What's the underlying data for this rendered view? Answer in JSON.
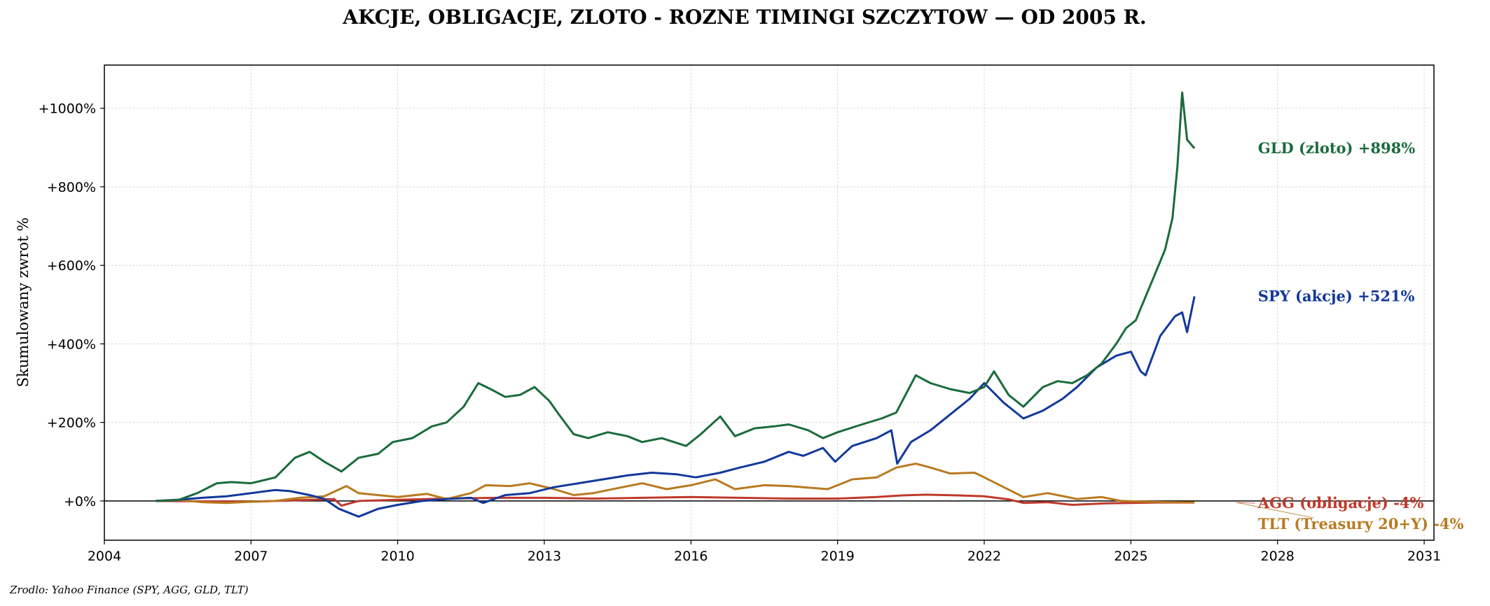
{
  "chart_data": {
    "type": "line",
    "title": "AKCJE, OBLIGACJE, ZLOTO - ROZNE TIMINGI SZCZYTOW — OD 2005 R.",
    "ylabel": "Skumulowany zwrot %",
    "xlabel": "",
    "source": "Zrodlo: Yahoo Finance (SPY, AGG, GLD, TLT)",
    "xlim": [
      2004.0,
      2031.2
    ],
    "ylim": [
      -100,
      1110
    ],
    "x_ticks": [
      2004,
      2007,
      2010,
      2013,
      2016,
      2019,
      2022,
      2025,
      2028,
      2031
    ],
    "x_tick_labels": [
      "2004",
      "2007",
      "2010",
      "2013",
      "2016",
      "2019",
      "2022",
      "2025",
      "2028",
      "2031"
    ],
    "y_ticks": [
      0,
      200,
      400,
      600,
      800,
      1000
    ],
    "y_tick_labels": [
      "+0%",
      "+200%",
      "+400%",
      "+600%",
      "+800%",
      "+1000%"
    ],
    "grid": true,
    "zero_line": true,
    "series": [
      {
        "name": "GLD (zloto)",
        "end_label": "GLD (zloto)  +898%",
        "color": "#1a6b3c",
        "x": [
          2005.05,
          2005.5,
          2005.9,
          2006.3,
          2006.6,
          2007.0,
          2007.5,
          2007.9,
          2008.2,
          2008.5,
          2008.85,
          2009.2,
          2009.6,
          2009.9,
          2010.3,
          2010.7,
          2011.0,
          2011.35,
          2011.65,
          2011.9,
          2012.2,
          2012.5,
          2012.8,
          2013.1,
          2013.3,
          2013.6,
          2013.9,
          2014.3,
          2014.7,
          2015.0,
          2015.4,
          2015.9,
          2016.2,
          2016.6,
          2016.9,
          2017.3,
          2017.7,
          2018.0,
          2018.4,
          2018.7,
          2019.0,
          2019.5,
          2019.9,
          2020.2,
          2020.6,
          2020.9,
          2021.3,
          2021.7,
          2022.0,
          2022.2,
          2022.5,
          2022.8,
          2023.2,
          2023.5,
          2023.8,
          2024.1,
          2024.4,
          2024.7,
          2024.9,
          2025.1,
          2025.3,
          2025.5,
          2025.7,
          2025.85,
          2025.95,
          2026.05,
          2026.15,
          2026.3
        ],
        "values": [
          0,
          2,
          20,
          45,
          48,
          45,
          60,
          110,
          125,
          100,
          75,
          110,
          120,
          150,
          160,
          190,
          200,
          240,
          300,
          285,
          265,
          270,
          290,
          255,
          220,
          170,
          160,
          175,
          165,
          150,
          160,
          140,
          170,
          215,
          165,
          185,
          190,
          195,
          180,
          160,
          175,
          195,
          210,
          225,
          320,
          300,
          285,
          275,
          290,
          330,
          270,
          240,
          290,
          305,
          300,
          320,
          350,
          400,
          440,
          460,
          520,
          580,
          640,
          720,
          850,
          1040,
          920,
          898
        ]
      },
      {
        "name": "SPY (akcje)",
        "end_label": "SPY (akcje)  +521%",
        "color": "#13389b",
        "x": [
          2005.05,
          2005.5,
          2006.0,
          2006.5,
          2007.0,
          2007.5,
          2007.8,
          2008.2,
          2008.5,
          2008.8,
          2009.0,
          2009.2,
          2009.6,
          2010.0,
          2010.5,
          2011.0,
          2011.5,
          2011.75,
          2012.2,
          2012.7,
          2013.2,
          2013.7,
          2014.2,
          2014.7,
          2015.2,
          2015.7,
          2016.1,
          2016.6,
          2017.0,
          2017.5,
          2018.0,
          2018.3,
          2018.7,
          2018.95,
          2019.3,
          2019.8,
          2020.1,
          2020.22,
          2020.5,
          2020.9,
          2021.3,
          2021.7,
          2022.0,
          2022.4,
          2022.8,
          2023.2,
          2023.6,
          2023.9,
          2024.3,
          2024.7,
          2025.0,
          2025.2,
          2025.3,
          2025.6,
          2025.9,
          2026.05,
          2026.15,
          2026.3
        ],
        "values": [
          0,
          3,
          8,
          12,
          20,
          28,
          25,
          15,
          5,
          -20,
          -30,
          -40,
          -20,
          -10,
          0,
          5,
          8,
          -5,
          15,
          20,
          35,
          45,
          55,
          65,
          72,
          68,
          60,
          72,
          85,
          100,
          125,
          115,
          135,
          100,
          140,
          160,
          180,
          95,
          150,
          180,
          220,
          260,
          300,
          250,
          210,
          230,
          260,
          290,
          340,
          370,
          380,
          330,
          320,
          420,
          470,
          480,
          430,
          521
        ]
      },
      {
        "name": "TLT (Treasury 20+Y)",
        "end_label": "TLT (Treasury 20+Y)  -4%",
        "color": "#b87a20",
        "x": [
          2005.05,
          2005.5,
          2006.0,
          2006.5,
          2007.0,
          2007.5,
          2008.0,
          2008.5,
          2008.95,
          2009.2,
          2009.6,
          2010.0,
          2010.6,
          2011.0,
          2011.5,
          2011.8,
          2012.3,
          2012.7,
          2013.2,
          2013.6,
          2014.0,
          2014.6,
          2015.0,
          2015.5,
          2016.0,
          2016.5,
          2016.9,
          2017.5,
          2018.0,
          2018.8,
          2019.3,
          2019.8,
          2020.2,
          2020.6,
          2020.9,
          2021.3,
          2021.8,
          2022.0,
          2022.4,
          2022.8,
          2023.3,
          2023.9,
          2024.4,
          2024.8,
          2025.3,
          2025.8,
          2026.3
        ],
        "values": [
          0,
          3,
          -3,
          -5,
          -2,
          0,
          8,
          12,
          38,
          20,
          15,
          10,
          18,
          5,
          20,
          40,
          38,
          45,
          30,
          15,
          20,
          35,
          45,
          30,
          40,
          55,
          30,
          40,
          38,
          30,
          55,
          60,
          85,
          95,
          85,
          70,
          72,
          60,
          35,
          10,
          20,
          5,
          10,
          0,
          -2,
          -3,
          -4
        ]
      },
      {
        "name": "AGG (obligacje)",
        "end_label": "AGG (obligacje)  -4%",
        "color": "#c0392b",
        "x": [
          2005.05,
          2006.0,
          2007.0,
          2008.0,
          2008.7,
          2008.85,
          2009.2,
          2010.0,
          2011.0,
          2012.0,
          2013.0,
          2014.0,
          2015.0,
          2016.0,
          2017.0,
          2018.0,
          2019.0,
          2019.8,
          2020.3,
          2020.8,
          2021.5,
          2022.0,
          2022.5,
          2022.8,
          2023.3,
          2023.8,
          2024.5,
          2025.0,
          2025.6,
          2026.3
        ],
        "values": [
          0,
          -1,
          -2,
          2,
          5,
          -12,
          0,
          3,
          6,
          8,
          8,
          6,
          8,
          10,
          8,
          6,
          6,
          10,
          14,
          16,
          14,
          12,
          4,
          -5,
          -3,
          -10,
          -6,
          -5,
          -4,
          -4
        ]
      }
    ]
  }
}
